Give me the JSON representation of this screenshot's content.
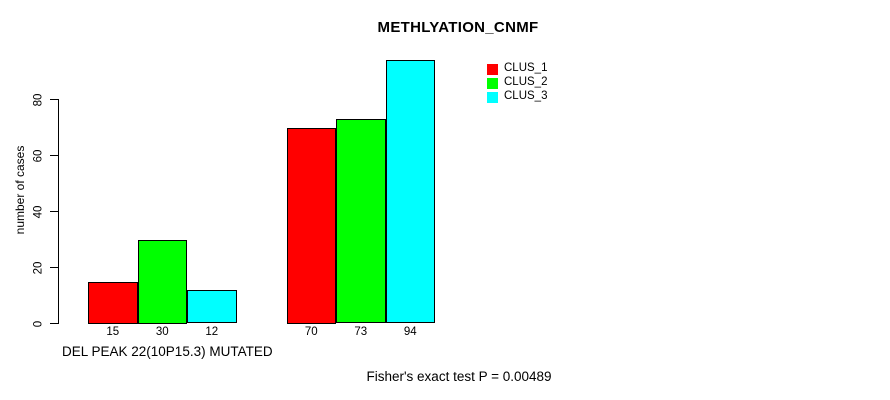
{
  "chart_data": {
    "type": "bar",
    "title": "METHLYATION_CNMF",
    "ylabel": "number of cases",
    "xlabel": "DEL PEAK 22(10P15.3) MUTATED",
    "annotation": "Fisher's exact test P = 0.00489",
    "grouped": true,
    "categories": [
      "",
      ""
    ],
    "series": [
      {
        "name": "CLUS_1",
        "color": "#ff0000",
        "values": [
          15,
          70
        ]
      },
      {
        "name": "CLUS_2",
        "color": "#00ff00",
        "values": [
          30,
          73
        ]
      },
      {
        "name": "CLUS_3",
        "color": "#00ffff",
        "values": [
          12,
          94
        ]
      }
    ],
    "x_tick_labels": [
      [
        "15",
        "30",
        "12"
      ],
      [
        "70",
        "73",
        "94"
      ]
    ],
    "yticks": [
      0,
      20,
      40,
      60,
      80
    ],
    "ylim": [
      0,
      94
    ],
    "grid": false,
    "legend_position": "top-right",
    "bar_border_color": "#000000",
    "axis_color": "#000000",
    "background_color": "#ffffff"
  }
}
